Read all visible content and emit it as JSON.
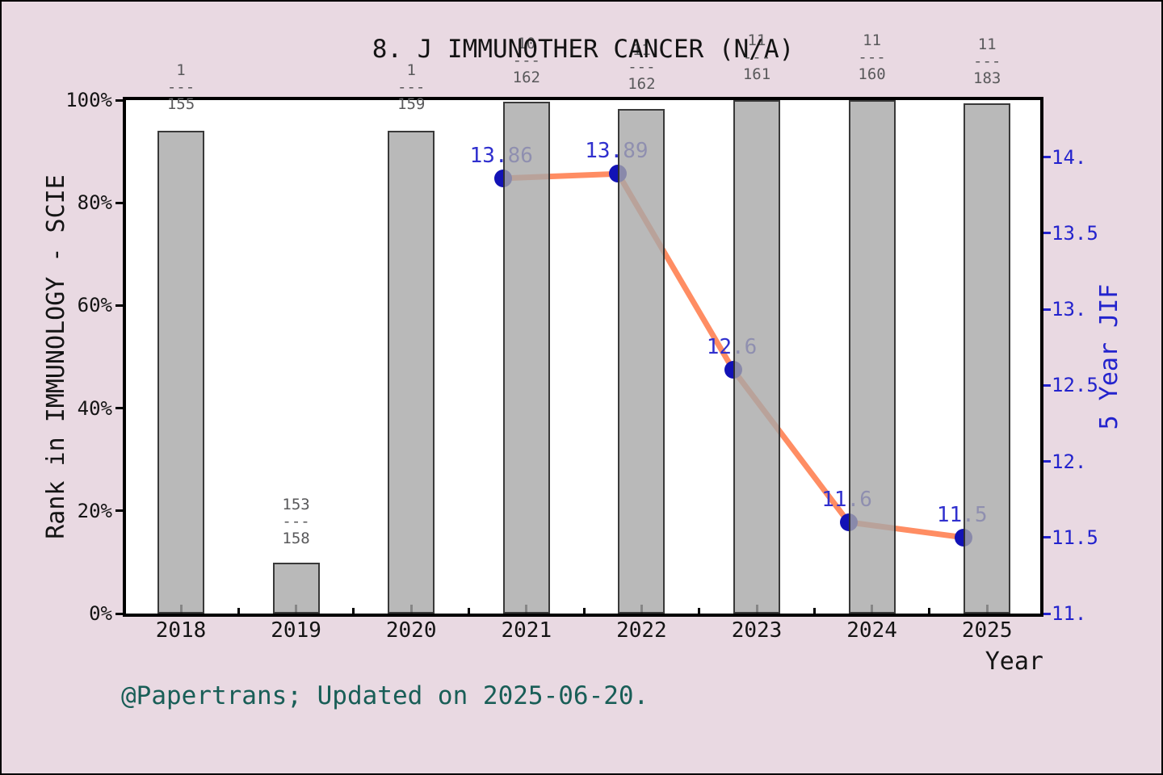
{
  "title": "8. J IMMUNOTHER CANCER (N/A)",
  "footer": "@Papertrans; Updated on 2025-06-20.",
  "colors": {
    "background": "#e9d9e2",
    "plot_background": "#ffffff",
    "bar_fill_apparent": "#b9b9b9",
    "line": "#ff8d63",
    "marker": "#1212b6",
    "point_label": "#3030ce",
    "right_axis": "#2323cd",
    "fraction_text": "#59595b",
    "footer_text": "#195e57",
    "axis_text": "#141414"
  },
  "chart_data": {
    "type": "bar",
    "subtype": "combo bar + line (dual axis)",
    "title": "8. J IMMUNOTHER CANCER (N/A)",
    "x_axis": {
      "label": "Year",
      "categories": [
        "2018",
        "2019",
        "2020",
        "2021",
        "2022",
        "2023",
        "2024",
        "2025"
      ]
    },
    "left_axis": {
      "label": "Rank in IMMUNOLOGY - SCIE",
      "ticks": [
        {
          "value": 0,
          "label": "0%"
        },
        {
          "value": 20,
          "label": "20%"
        },
        {
          "value": 40,
          "label": "40%"
        },
        {
          "value": 60,
          "label": "60%"
        },
        {
          "value": 80,
          "label": "80%"
        },
        {
          "value": 100,
          "label": "100%"
        }
      ],
      "range": [
        0,
        100
      ]
    },
    "right_axis": {
      "label": "5 Year JIF",
      "ticks": [
        {
          "value": 11,
          "label": "11."
        },
        {
          "value": 11.5,
          "label": "11.5"
        },
        {
          "value": 12,
          "label": "12."
        },
        {
          "value": 12.5,
          "label": "12.5"
        },
        {
          "value": 13,
          "label": "13."
        },
        {
          "value": 13.5,
          "label": "13.5"
        },
        {
          "value": 14,
          "label": "14."
        }
      ],
      "range": [
        11,
        14.37
      ]
    },
    "bars": [
      {
        "year": "2018",
        "rank": "1",
        "total": "155",
        "height_pct": 94.0,
        "fraction_top_y": 75
      },
      {
        "year": "2019",
        "rank": "153",
        "total": "158",
        "height_pct": 9.9,
        "fraction_top_y": 613
      },
      {
        "year": "2020",
        "rank": "1",
        "total": "159",
        "height_pct": 94.0,
        "fraction_top_y": 75
      },
      {
        "year": "2021",
        "rank": "10",
        "total": "162",
        "height_pct": 99.7,
        "fraction_top_y": 42
      },
      {
        "year": "2022",
        "rank": "11",
        "total": "162",
        "height_pct": 98.3,
        "fraction_top_y": 50
      },
      {
        "year": "2023",
        "rank": "11",
        "total": "161",
        "height_pct": 100,
        "fraction_top_y": 38
      },
      {
        "year": "2024",
        "rank": "11",
        "total": "160",
        "height_pct": 100,
        "fraction_top_y": 38
      },
      {
        "year": "2025",
        "rank": "11",
        "total": "183",
        "height_pct": 99.4,
        "fraction_top_y": 43
      }
    ],
    "fraction_separator": "---",
    "line_series": {
      "name": "5 Year JIF",
      "points": [
        {
          "year": "2021",
          "value": 13.86,
          "label": "13.86"
        },
        {
          "year": "2022",
          "value": 13.89,
          "label": "13.89"
        },
        {
          "year": "2023",
          "value": 12.6,
          "label": "12.6"
        },
        {
          "year": "2024",
          "value": 11.6,
          "label": "11.6"
        },
        {
          "year": "2025",
          "value": 11.5,
          "label": "11.5"
        }
      ]
    }
  }
}
